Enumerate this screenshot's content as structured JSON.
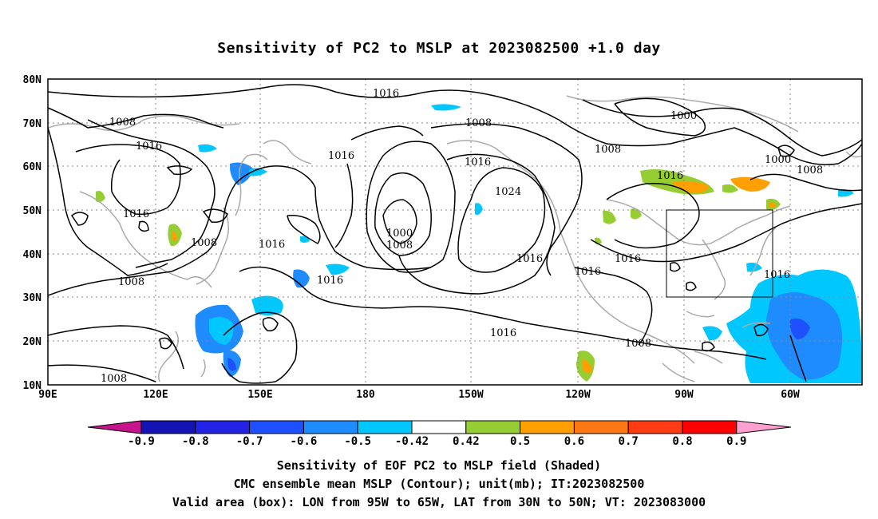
{
  "title": "Sensitivity of PC2 to MSLP at 2023082500 +1.0 day",
  "lat_labels": [
    "80N",
    "70N",
    "60N",
    "50N",
    "40N",
    "30N",
    "20N",
    "10N"
  ],
  "lon_labels": [
    "90E",
    "120E",
    "150E",
    "180",
    "150W",
    "120W",
    "90W",
    "60W"
  ],
  "map": {
    "lat_range": [
      10,
      80
    ],
    "lon_range": [
      90,
      307
    ],
    "grid": "dotted",
    "box": {
      "lon": [
        265,
        295
      ],
      "lat": [
        30,
        50
      ]
    }
  },
  "contour_labels": [
    "1016",
    "1008",
    "1016",
    "1000",
    "1008",
    "1016",
    "1016",
    "1024",
    "1008",
    "1016",
    "1000",
    "1008",
    "1016",
    "1016",
    "1000",
    "1008",
    "1016",
    "1016",
    "1016",
    "1016",
    "1008",
    "1016",
    "1016",
    "1008",
    "1008",
    "1008",
    "1016",
    "1016"
  ],
  "colorbar": {
    "labels": [
      "-0.9",
      "-0.8",
      "-0.7",
      "-0.6",
      "-0.5",
      "-0.42",
      "0.42",
      "0.5",
      "0.6",
      "0.7",
      "0.8",
      "0.9"
    ],
    "colors": [
      "#1414b4",
      "#2323e6",
      "#1e50ff",
      "#1e8cff",
      "#00c8ff",
      "#ffffff",
      "#96cd32",
      "#ffa000",
      "#ff7814",
      "#ff3c14",
      "#ff0000"
    ],
    "end_low": "#c8148c",
    "end_high": "#ffa0d2"
  },
  "captions": [
    "Sensitivity of EOF PC2 to MSLP field (Shaded)",
    "CMC ensemble mean MSLP (Contour); unit(mb); IT:2023082500",
    "Valid area (box): LON from 95W to 65W, LAT from 30N to 50N; VT: 2023083000"
  ]
}
